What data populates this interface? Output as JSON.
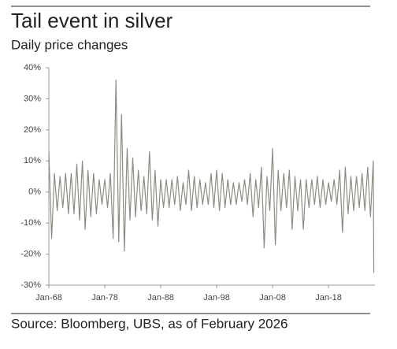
{
  "chart_data": {
    "type": "line",
    "title": "Tail event in silver",
    "subtitle": "Daily price changes",
    "source": "Source: Bloomberg, UBS, as of February 2026",
    "x": [
      1968.0,
      1968.5,
      1969.0,
      1969.5,
      1970.0,
      1970.5,
      1971.0,
      1971.5,
      1972.0,
      1972.5,
      1973.0,
      1973.5,
      1974.0,
      1974.5,
      1975.0,
      1975.5,
      1976.0,
      1976.5,
      1977.0,
      1977.5,
      1978.0,
      1978.5,
      1979.0,
      1979.5,
      1980.0,
      1980.5,
      1981.0,
      1981.5,
      1982.0,
      1982.5,
      1983.0,
      1983.5,
      1984.0,
      1984.5,
      1985.0,
      1985.5,
      1986.0,
      1986.5,
      1987.0,
      1987.5,
      1988.0,
      1988.5,
      1989.0,
      1989.5,
      1990.0,
      1990.5,
      1991.0,
      1991.5,
      1992.0,
      1992.5,
      1993.0,
      1993.5,
      1994.0,
      1994.5,
      1995.0,
      1995.5,
      1996.0,
      1996.5,
      1997.0,
      1997.5,
      1998.0,
      1998.5,
      1999.0,
      1999.5,
      2000.0,
      2000.5,
      2001.0,
      2001.5,
      2002.0,
      2002.5,
      2003.0,
      2003.5,
      2004.0,
      2004.5,
      2005.0,
      2005.5,
      2006.0,
      2006.5,
      2007.0,
      2007.5,
      2008.0,
      2008.5,
      2009.0,
      2009.5,
      2010.0,
      2010.5,
      2011.0,
      2011.5,
      2012.0,
      2012.5,
      2013.0,
      2013.5,
      2014.0,
      2014.5,
      2015.0,
      2015.5,
      2016.0,
      2016.5,
      2017.0,
      2017.5,
      2018.0,
      2018.5,
      2019.0,
      2019.5,
      2020.0,
      2020.5,
      2021.0,
      2021.5,
      2022.0,
      2022.5,
      2023.0,
      2023.5,
      2024.0,
      2024.5,
      2025.0,
      2025.5,
      2026.0,
      2026.1
    ],
    "series": [
      {
        "name": "Daily price change",
        "color": "#8c8c84",
        "values": [
          13,
          -15,
          6,
          -6,
          5,
          -5,
          6,
          -7,
          6,
          -7,
          9,
          -9,
          10,
          -12,
          7,
          -8,
          6,
          -7,
          4,
          -4,
          4,
          -5,
          6,
          -15,
          36,
          -16,
          25,
          -19,
          14,
          -9,
          11,
          -8,
          7,
          -6,
          5,
          -7,
          13,
          -9,
          7,
          -11,
          4,
          -5,
          4,
          -5,
          4,
          -4,
          5,
          -6,
          3,
          -4,
          7,
          -6,
          5,
          -5,
          4,
          -4,
          3,
          -4,
          6,
          -5,
          7,
          -6,
          6,
          -5,
          4,
          -4,
          3,
          -4,
          3,
          -3,
          4,
          -4,
          6,
          -8,
          4,
          -5,
          8,
          -18,
          5,
          -6,
          14,
          -17,
          7,
          -6,
          6,
          -5,
          7,
          -12,
          5,
          -6,
          4,
          -12,
          4,
          -5,
          4,
          -4,
          5,
          -5,
          4,
          -4,
          3,
          -3,
          4,
          -4,
          7,
          -13,
          8,
          -7,
          5,
          -6,
          5,
          -5,
          6,
          -6,
          8,
          -8,
          10,
          -26
        ]
      }
    ],
    "xlim": [
      1968,
      2026.3
    ],
    "xticks": [
      {
        "value": 1968,
        "label": "Jan-68"
      },
      {
        "value": 1978,
        "label": "Jan-78"
      },
      {
        "value": 1988,
        "label": "Jan-88"
      },
      {
        "value": 1998,
        "label": "Jan-98"
      },
      {
        "value": 2008,
        "label": "Jan-08"
      },
      {
        "value": 2018,
        "label": "Jan-18"
      }
    ],
    "ylim": [
      -30,
      40
    ],
    "yticks": [
      {
        "value": 40,
        "label": "40%"
      },
      {
        "value": 30,
        "label": "30%"
      },
      {
        "value": 20,
        "label": "20%"
      },
      {
        "value": 10,
        "label": "10%"
      },
      {
        "value": 0,
        "label": "0%"
      },
      {
        "value": -10,
        "label": "-10%"
      },
      {
        "value": -20,
        "label": "-20%"
      },
      {
        "value": -30,
        "label": "-30%"
      }
    ],
    "grid": false
  }
}
